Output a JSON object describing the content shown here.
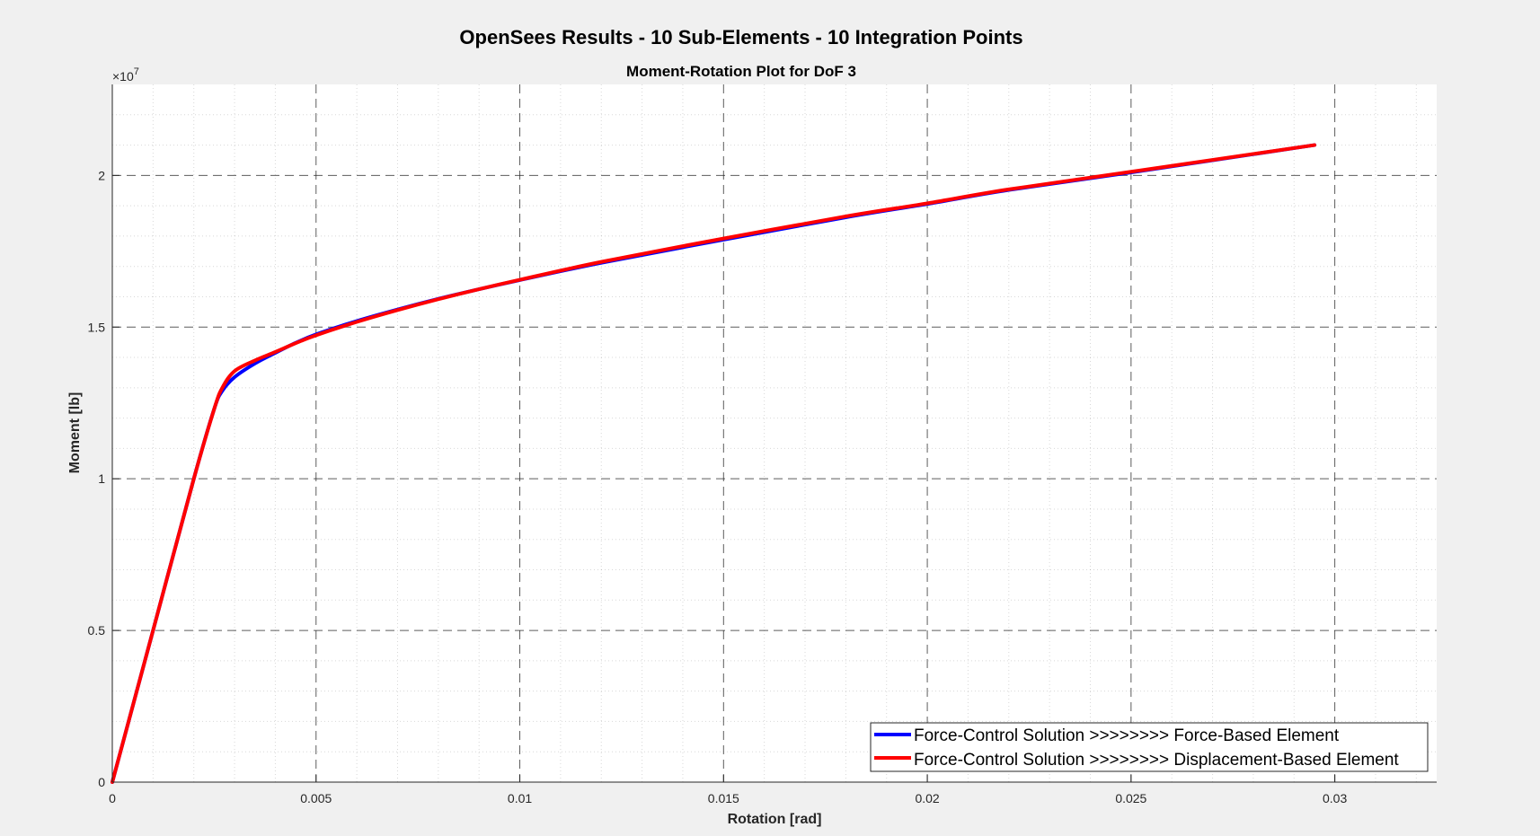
{
  "figure": {
    "suptitle": "OpenSees Results - 10 Sub-Elements - 10 Integration Points"
  },
  "chart_data": {
    "type": "line",
    "title": "Moment-Rotation Plot for DoF 3",
    "xlabel": "Rotation [rad]",
    "ylabel": "Moment [lb]",
    "y_exponent_label": "×10",
    "y_exponent_power": "7",
    "xlim": [
      0,
      0.0325
    ],
    "ylim": [
      0,
      23000000
    ],
    "x_ticks": [
      0,
      0.005,
      0.01,
      0.015,
      0.02,
      0.025,
      0.03
    ],
    "x_tick_labels": [
      "0",
      "0.005",
      "0.01",
      "0.015",
      "0.02",
      "0.025",
      "0.03"
    ],
    "y_ticks": [
      0,
      5000000,
      10000000,
      15000000,
      20000000
    ],
    "y_tick_labels": [
      "0",
      "0.5",
      "1",
      "1.5",
      "2"
    ],
    "grid": "major dashed, minor dotted",
    "legend_position": "bottom-right",
    "colors": {
      "background": "#f0f0f0",
      "axes": "#ffffff",
      "grid": "#262626"
    },
    "series": [
      {
        "name": "Force-Control Solution >>>>>>>> Force-Based Element",
        "color": "#0000ff",
        "x": [
          0,
          0.001,
          0.002,
          0.0025,
          0.0027,
          0.003,
          0.0035,
          0.004,
          0.0045,
          0.005,
          0.006,
          0.007,
          0.008,
          0.009,
          0.01,
          0.012,
          0.015,
          0.018,
          0.02,
          0.022,
          0.025,
          0.0295
        ],
        "y": [
          0,
          5000000,
          10000000,
          12300000,
          12900000,
          13350000,
          13800000,
          14150000,
          14480000,
          14760000,
          15200000,
          15580000,
          15930000,
          16250000,
          16550000,
          17120000,
          17880000,
          18620000,
          19060000,
          19520000,
          20100000,
          21000000
        ]
      },
      {
        "name": "Force-Control Solution >>>>>>>> Displacement-Based Element",
        "color": "#ff0000",
        "x": [
          0,
          0.001,
          0.002,
          0.0025,
          0.0027,
          0.003,
          0.0035,
          0.004,
          0.0045,
          0.005,
          0.006,
          0.007,
          0.008,
          0.009,
          0.01,
          0.012,
          0.015,
          0.018,
          0.02,
          0.022,
          0.025,
          0.0295
        ],
        "y": [
          0,
          5000000,
          10000000,
          12300000,
          13000000,
          13550000,
          13900000,
          14180000,
          14470000,
          14730000,
          15170000,
          15560000,
          15920000,
          16250000,
          16560000,
          17150000,
          17920000,
          18650000,
          19080000,
          19540000,
          20120000,
          21000000
        ]
      }
    ]
  }
}
